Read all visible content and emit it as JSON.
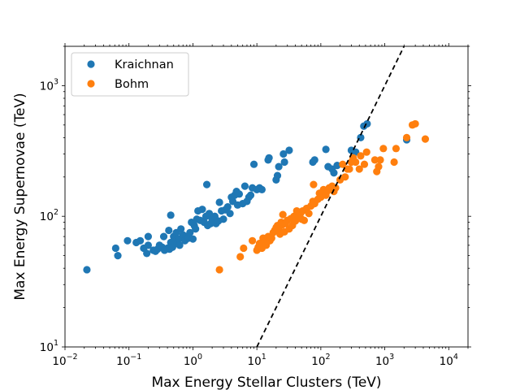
{
  "chart_data": {
    "type": "scatter",
    "xscale": "log",
    "yscale": "log",
    "xlim": [
      0.01,
      20000
    ],
    "ylim": [
      10,
      2000
    ],
    "xlabel": "Max Energy Stellar Clusters (TeV)",
    "ylabel": "Max Energy Supernovae (TeV)",
    "legend_position": "top-left",
    "x_ticks": [
      {
        "value": 0.01,
        "base": "10",
        "exp": "−2"
      },
      {
        "value": 0.1,
        "base": "10",
        "exp": "−1"
      },
      {
        "value": 1,
        "base": "10",
        "exp": "0"
      },
      {
        "value": 10,
        "base": "10",
        "exp": "1"
      },
      {
        "value": 100,
        "base": "10",
        "exp": "2"
      },
      {
        "value": 1000,
        "base": "10",
        "exp": "3"
      },
      {
        "value": 10000,
        "base": "10",
        "exp": "4"
      }
    ],
    "y_ticks": [
      {
        "value": 10,
        "base": "10",
        "exp": "1"
      },
      {
        "value": 100,
        "base": "10",
        "exp": "2"
      },
      {
        "value": 1000,
        "base": "10",
        "exp": "3"
      }
    ],
    "reference_line": {
      "style": "dashed",
      "color": "#000000",
      "points": [
        [
          10,
          10
        ],
        [
          2000,
          2000
        ]
      ]
    },
    "series": [
      {
        "name": "Kraichnan",
        "color": "#1f77b4",
        "points": [
          [
            0.022,
            39
          ],
          [
            0.062,
            57
          ],
          [
            0.067,
            50
          ],
          [
            0.095,
            65
          ],
          [
            0.13,
            63
          ],
          [
            0.15,
            65
          ],
          [
            0.17,
            57
          ],
          [
            0.19,
            52
          ],
          [
            0.2,
            60
          ],
          [
            0.2,
            70
          ],
          [
            0.24,
            55
          ],
          [
            0.26,
            54
          ],
          [
            0.28,
            56
          ],
          [
            0.3,
            60
          ],
          [
            0.33,
            58
          ],
          [
            0.35,
            70
          ],
          [
            0.36,
            55
          ],
          [
            0.4,
            57
          ],
          [
            0.42,
            78
          ],
          [
            0.43,
            56
          ],
          [
            0.45,
            63
          ],
          [
            0.45,
            102
          ],
          [
            0.48,
            58
          ],
          [
            0.5,
            70
          ],
          [
            0.52,
            64
          ],
          [
            0.55,
            75
          ],
          [
            0.57,
            62
          ],
          [
            0.6,
            67
          ],
          [
            0.62,
            60
          ],
          [
            0.65,
            80
          ],
          [
            0.7,
            72
          ],
          [
            0.75,
            65
          ],
          [
            0.8,
            70
          ],
          [
            0.85,
            68
          ],
          [
            0.9,
            75
          ],
          [
            0.95,
            90
          ],
          [
            1.0,
            67
          ],
          [
            1.05,
            85
          ],
          [
            1.1,
            80
          ],
          [
            1.15,
            95
          ],
          [
            1.2,
            110
          ],
          [
            1.3,
            93
          ],
          [
            1.4,
            113
          ],
          [
            1.5,
            90
          ],
          [
            1.6,
            100
          ],
          [
            1.65,
            175
          ],
          [
            1.7,
            85
          ],
          [
            1.8,
            105
          ],
          [
            1.9,
            88
          ],
          [
            2.0,
            95
          ],
          [
            2.2,
            100
          ],
          [
            2.3,
            88
          ],
          [
            2.5,
            92
          ],
          [
            2.6,
            128
          ],
          [
            2.8,
            110
          ],
          [
            3.0,
            95
          ],
          [
            3.2,
            112
          ],
          [
            3.5,
            118
          ],
          [
            3.8,
            105
          ],
          [
            4.0,
            140
          ],
          [
            4.2,
            130
          ],
          [
            4.5,
            145
          ],
          [
            4.8,
            155
          ],
          [
            5.0,
            122
          ],
          [
            5.3,
            148
          ],
          [
            6.0,
            125
          ],
          [
            6.5,
            170
          ],
          [
            7.0,
            130
          ],
          [
            7.5,
            140
          ],
          [
            8.0,
            145
          ],
          [
            8.5,
            165
          ],
          [
            9.0,
            250
          ],
          [
            10.0,
            160
          ],
          [
            11.0,
            165
          ],
          [
            12.0,
            160
          ],
          [
            15.0,
            270
          ],
          [
            15.5,
            280
          ],
          [
            20.0,
            190
          ],
          [
            21.0,
            205
          ],
          [
            22.0,
            240
          ],
          [
            26.0,
            300
          ],
          [
            27.0,
            260
          ],
          [
            32.0,
            320
          ],
          [
            75.0,
            260
          ],
          [
            80.0,
            270
          ],
          [
            120.0,
            325
          ],
          [
            130.0,
            240
          ],
          [
            150.0,
            230
          ],
          [
            160.0,
            215
          ],
          [
            180.0,
            245
          ],
          [
            300.0,
            320
          ],
          [
            350.0,
            310
          ],
          [
            420.0,
            400
          ],
          [
            470.0,
            490
          ],
          [
            530.0,
            510
          ],
          [
            2200.0,
            385
          ]
        ]
      },
      {
        "name": "Bohm",
        "color": "#ff7f0e",
        "points": [
          [
            2.6,
            39
          ],
          [
            5.5,
            49
          ],
          [
            6.2,
            57
          ],
          [
            8.5,
            65
          ],
          [
            10.0,
            55
          ],
          [
            10.5,
            58
          ],
          [
            11.0,
            62
          ],
          [
            12.0,
            57
          ],
          [
            12.5,
            68
          ],
          [
            13.0,
            63
          ],
          [
            14.0,
            60
          ],
          [
            15.0,
            70
          ],
          [
            16.0,
            65
          ],
          [
            17.0,
            68
          ],
          [
            18.0,
            75
          ],
          [
            19.0,
            78
          ],
          [
            20.0,
            82
          ],
          [
            21.0,
            85
          ],
          [
            22.0,
            80
          ],
          [
            23.0,
            73
          ],
          [
            24.0,
            90
          ],
          [
            25.0,
            86
          ],
          [
            25.5,
            103
          ],
          [
            27.0,
            76
          ],
          [
            28.0,
            88
          ],
          [
            30.0,
            93
          ],
          [
            32.0,
            80
          ],
          [
            34.0,
            96
          ],
          [
            36.0,
            85
          ],
          [
            38.0,
            100
          ],
          [
            40.0,
            92
          ],
          [
            42.0,
            110
          ],
          [
            45.0,
            98
          ],
          [
            48.0,
            105
          ],
          [
            50.0,
            95
          ],
          [
            52.0,
            110
          ],
          [
            55.0,
            93
          ],
          [
            60.0,
            115
          ],
          [
            65.0,
            105
          ],
          [
            70.0,
            120
          ],
          [
            75.0,
            130
          ],
          [
            77.0,
            175
          ],
          [
            80.0,
            125
          ],
          [
            90.0,
            135
          ],
          [
            95.0,
            150
          ],
          [
            100.0,
            140
          ],
          [
            110.0,
            160
          ],
          [
            120.0,
            145
          ],
          [
            125.0,
            155
          ],
          [
            135.0,
            165
          ],
          [
            150.0,
            170
          ],
          [
            160.0,
            155
          ],
          [
            170.0,
            165
          ],
          [
            200.0,
            190
          ],
          [
            220.0,
            250
          ],
          [
            240.0,
            200
          ],
          [
            260.0,
            230
          ],
          [
            280.0,
            230
          ],
          [
            300.0,
            260
          ],
          [
            320.0,
            280
          ],
          [
            350.0,
            260
          ],
          [
            400.0,
            230
          ],
          [
            420.0,
            290
          ],
          [
            480.0,
            250
          ],
          [
            520.0,
            310
          ],
          [
            700.0,
            270
          ],
          [
            750.0,
            220
          ],
          [
            800.0,
            240
          ],
          [
            850.0,
            270
          ],
          [
            950.0,
            330
          ],
          [
            1400.0,
            260
          ],
          [
            1500.0,
            330
          ],
          [
            2200.0,
            400
          ],
          [
            2700.0,
            500
          ],
          [
            3000.0,
            510
          ],
          [
            4300.0,
            390
          ]
        ]
      }
    ]
  }
}
